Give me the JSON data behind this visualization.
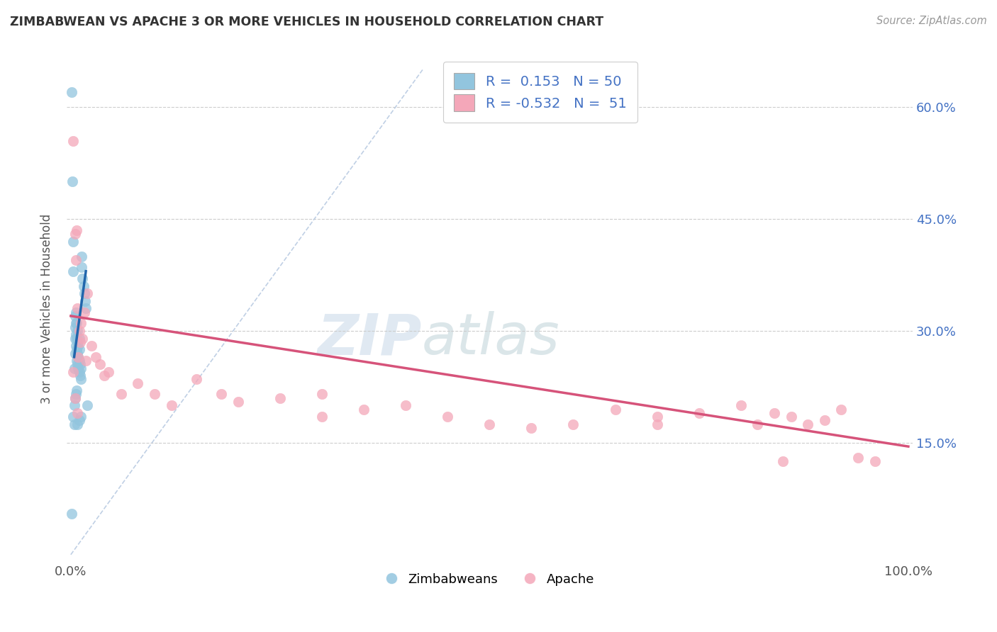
{
  "title": "ZIMBABWEAN VS APACHE 3 OR MORE VEHICLES IN HOUSEHOLD CORRELATION CHART",
  "source": "Source: ZipAtlas.com",
  "ylabel": "3 or more Vehicles in Household",
  "ytick_labels": [
    "15.0%",
    "30.0%",
    "45.0%",
    "60.0%"
  ],
  "ytick_values": [
    0.15,
    0.3,
    0.45,
    0.6
  ],
  "xlim": [
    0.0,
    1.0
  ],
  "ylim": [
    0.0,
    0.65
  ],
  "legend_blue_r": "0.153",
  "legend_blue_n": "50",
  "legend_pink_r": "-0.532",
  "legend_pink_n": "51",
  "legend_label_blue": "Zimbabweans",
  "legend_label_pink": "Apache",
  "blue_color": "#92c5de",
  "pink_color": "#f4a7b9",
  "blue_line_color": "#2166ac",
  "pink_line_color": "#d6537a",
  "ref_line_color": "#b0c4de",
  "watermark_zip": "ZIP",
  "watermark_atlas": "atlas",
  "blue_scatter_x": [
    0.001,
    0.002,
    0.003,
    0.003,
    0.004,
    0.004,
    0.005,
    0.005,
    0.005,
    0.005,
    0.006,
    0.006,
    0.006,
    0.006,
    0.007,
    0.007,
    0.007,
    0.007,
    0.008,
    0.008,
    0.008,
    0.008,
    0.009,
    0.009,
    0.009,
    0.01,
    0.01,
    0.01,
    0.01,
    0.011,
    0.011,
    0.012,
    0.012,
    0.013,
    0.013,
    0.014,
    0.015,
    0.016,
    0.017,
    0.018,
    0.003,
    0.004,
    0.005,
    0.006,
    0.007,
    0.008,
    0.01,
    0.012,
    0.02,
    0.001
  ],
  "blue_scatter_y": [
    0.055,
    0.5,
    0.42,
    0.38,
    0.175,
    0.25,
    0.27,
    0.29,
    0.305,
    0.32,
    0.28,
    0.295,
    0.31,
    0.325,
    0.26,
    0.275,
    0.29,
    0.31,
    0.255,
    0.27,
    0.285,
    0.3,
    0.25,
    0.265,
    0.28,
    0.245,
    0.26,
    0.275,
    0.29,
    0.24,
    0.255,
    0.235,
    0.25,
    0.385,
    0.4,
    0.37,
    0.36,
    0.35,
    0.34,
    0.33,
    0.185,
    0.2,
    0.21,
    0.215,
    0.22,
    0.175,
    0.18,
    0.185,
    0.2,
    0.62
  ],
  "pink_scatter_x": [
    0.003,
    0.005,
    0.006,
    0.007,
    0.008,
    0.009,
    0.01,
    0.011,
    0.012,
    0.014,
    0.016,
    0.018,
    0.02,
    0.025,
    0.03,
    0.035,
    0.04,
    0.045,
    0.06,
    0.08,
    0.1,
    0.12,
    0.15,
    0.18,
    0.2,
    0.25,
    0.3,
    0.35,
    0.4,
    0.45,
    0.5,
    0.55,
    0.6,
    0.65,
    0.7,
    0.75,
    0.8,
    0.82,
    0.84,
    0.86,
    0.88,
    0.9,
    0.92,
    0.94,
    0.96,
    0.003,
    0.005,
    0.008,
    0.3,
    0.7,
    0.85
  ],
  "pink_scatter_y": [
    0.555,
    0.43,
    0.395,
    0.435,
    0.33,
    0.265,
    0.3,
    0.285,
    0.31,
    0.29,
    0.325,
    0.26,
    0.35,
    0.28,
    0.265,
    0.255,
    0.24,
    0.245,
    0.215,
    0.23,
    0.215,
    0.2,
    0.235,
    0.215,
    0.205,
    0.21,
    0.185,
    0.195,
    0.2,
    0.185,
    0.175,
    0.17,
    0.175,
    0.195,
    0.185,
    0.19,
    0.2,
    0.175,
    0.19,
    0.185,
    0.175,
    0.18,
    0.195,
    0.13,
    0.125,
    0.245,
    0.21,
    0.19,
    0.215,
    0.175,
    0.125
  ],
  "blue_line_x": [
    0.004,
    0.018
  ],
  "blue_line_y": [
    0.265,
    0.38
  ],
  "pink_line_x": [
    0.0,
    1.0
  ],
  "pink_line_y": [
    0.32,
    0.145
  ]
}
